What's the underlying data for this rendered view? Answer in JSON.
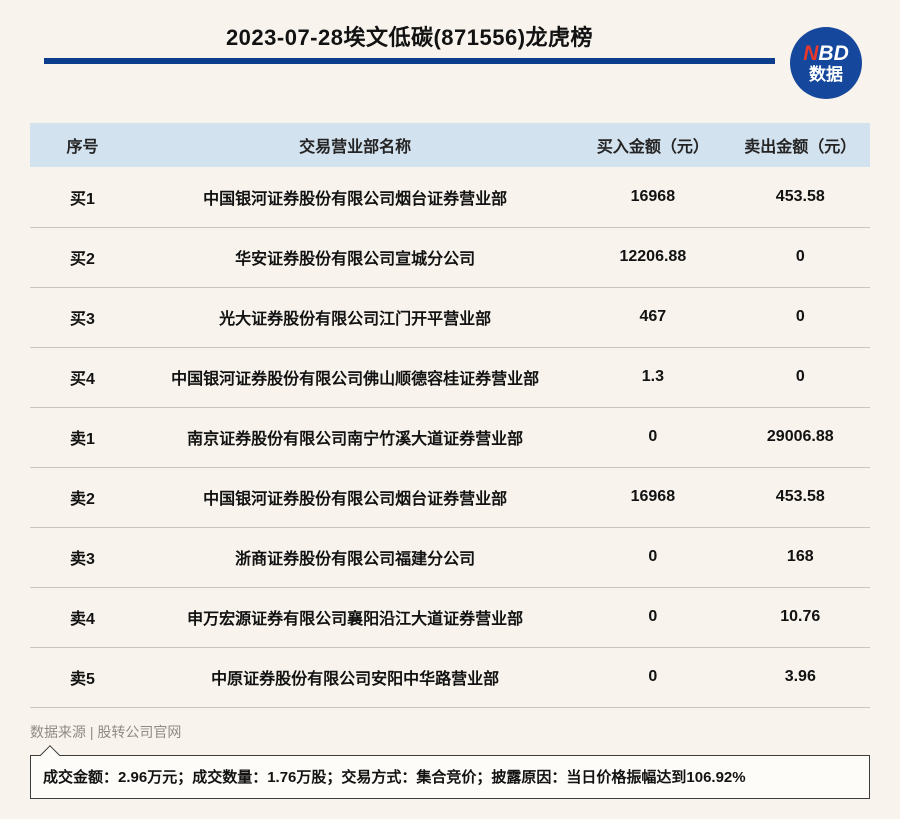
{
  "page": {
    "title": "2023-07-28埃文低碳(871556)龙虎榜"
  },
  "logo": {
    "line1_red": "N",
    "line1_white": "BD",
    "line2": "数据"
  },
  "table": {
    "headers": [
      "序号",
      "交易营业部名称",
      "买入金额（元）",
      "卖出金额（元）"
    ],
    "rows": [
      {
        "seq": "买1",
        "name": "中国银河证券股份有限公司烟台证券营业部",
        "buy": "16968",
        "sell": "453.58"
      },
      {
        "seq": "买2",
        "name": "华安证券股份有限公司宣城分公司",
        "buy": "12206.88",
        "sell": "0"
      },
      {
        "seq": "买3",
        "name": "光大证券股份有限公司江门开平营业部",
        "buy": "467",
        "sell": "0"
      },
      {
        "seq": "买4",
        "name": "中国银河证券股份有限公司佛山顺德容桂证券营业部",
        "buy": "1.3",
        "sell": "0"
      },
      {
        "seq": "卖1",
        "name": "南京证券股份有限公司南宁竹溪大道证券营业部",
        "buy": "0",
        "sell": "29006.88"
      },
      {
        "seq": "卖2",
        "name": "中国银河证券股份有限公司烟台证券营业部",
        "buy": "16968",
        "sell": "453.58"
      },
      {
        "seq": "卖3",
        "name": "浙商证券股份有限公司福建分公司",
        "buy": "0",
        "sell": "168"
      },
      {
        "seq": "卖4",
        "name": "申万宏源证券有限公司襄阳沿江大道证券营业部",
        "buy": "0",
        "sell": "10.76"
      },
      {
        "seq": "卖5",
        "name": "中原证券股份有限公司安阳中华路营业部",
        "buy": "0",
        "sell": "3.96"
      }
    ]
  },
  "footer": {
    "source": "数据来源 | 股转公司官网",
    "note": "成交金额：2.96万元；成交数量：1.76万股；交易方式：集合竞价；披露原因：当日价格振幅达到106.92%"
  },
  "colors": {
    "page_bg": "#f8f4ed",
    "accent_blue": "#0c3d8d",
    "header_bg": "#d3e2ef",
    "row_divider": "#c9c5bf",
    "logo_blue": "#15489c",
    "logo_red": "#e8372c",
    "source_gray": "#8f8b84"
  },
  "chart_data": {
    "type": "table",
    "title": "2023-07-28埃文低碳(871556)龙虎榜",
    "columns": [
      "序号",
      "交易营业部名称",
      "买入金额（元）",
      "卖出金额（元）"
    ],
    "rows": [
      [
        "买1",
        "中国银河证券股份有限公司烟台证券营业部",
        16968,
        453.58
      ],
      [
        "买2",
        "华安证券股份有限公司宣城分公司",
        12206.88,
        0
      ],
      [
        "买3",
        "光大证券股份有限公司江门开平营业部",
        467,
        0
      ],
      [
        "买4",
        "中国银河证券股份有限公司佛山顺德容桂证券营业部",
        1.3,
        0
      ],
      [
        "卖1",
        "南京证券股份有限公司南宁竹溪大道证券营业部",
        0,
        29006.88
      ],
      [
        "卖2",
        "中国银河证券股份有限公司烟台证券营业部",
        16968,
        453.58
      ],
      [
        "卖3",
        "浙商证券股份有限公司福建分公司",
        0,
        168
      ],
      [
        "卖4",
        "申万宏源证券有限公司襄阳沿江大道证券营业部",
        0,
        10.76
      ],
      [
        "卖5",
        "中原证券股份有限公司安阳中华路营业部",
        0,
        3.96
      ]
    ],
    "source": "数据来源 | 股转公司官网",
    "note": "成交金额：2.96万元；成交数量：1.76万股；交易方式：集合竞价；披露原因：当日价格振幅达到106.92%"
  }
}
